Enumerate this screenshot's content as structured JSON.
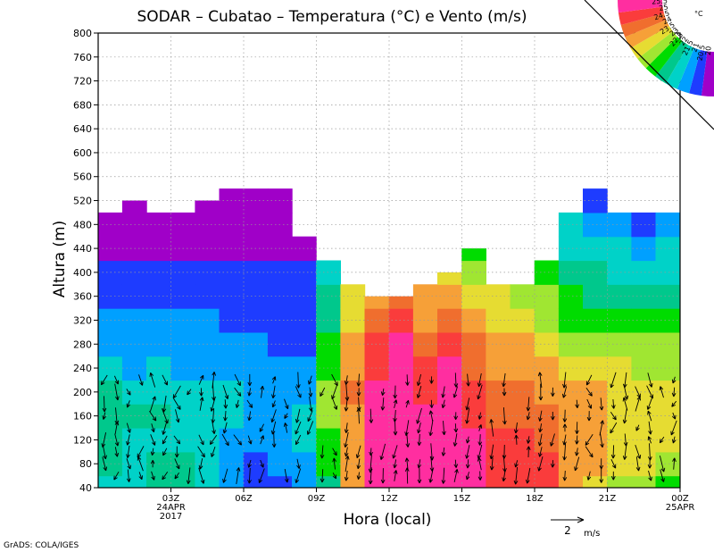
{
  "chart_data": {
    "type": "heatmap",
    "title": "SODAR – Cubatao – Temperatura (°C) e Vento (m/s)",
    "xlabel": "Hora (local)",
    "ylabel": "Altura (m)",
    "x_ticks": [
      {
        "hour": 3,
        "label": "03Z",
        "date": "24APR",
        "year": "2017"
      },
      {
        "hour": 6,
        "label": "06Z"
      },
      {
        "hour": 9,
        "label": "09Z"
      },
      {
        "hour": 12,
        "label": "12Z"
      },
      {
        "hour": 15,
        "label": "15Z"
      },
      {
        "hour": 18,
        "label": "18Z"
      },
      {
        "hour": 21,
        "label": "21Z"
      },
      {
        "hour": 24,
        "label": "00Z",
        "date": "25APR"
      }
    ],
    "xlim": [
      0,
      24
    ],
    "y_ticks": [
      40,
      80,
      120,
      160,
      200,
      240,
      280,
      320,
      360,
      400,
      440,
      480,
      520,
      560,
      600,
      640,
      680,
      720,
      760,
      800
    ],
    "ylim": [
      40,
      800
    ],
    "legend": {
      "unit": "°C",
      "levels": [
        "25.5",
        "25",
        "24.5",
        "24",
        "23.5",
        "23",
        "22.5",
        "22",
        "21.5",
        "21",
        "20.5",
        "20"
      ],
      "colors": [
        "#ff2ea0",
        "#fa3c3c",
        "#f06e2e",
        "#f6a038",
        "#e6dc32",
        "#a0e632",
        "#00dc00",
        "#00c88c",
        "#00d2c8",
        "#00a0ff",
        "#1e3cff",
        "#a000c8"
      ]
    },
    "wind_scale": {
      "value": "2",
      "unit": "m/s"
    },
    "credit": "GrADS: COLA/IGES",
    "time": [
      0,
      1,
      2,
      3,
      4,
      5,
      6,
      7,
      8,
      9,
      10,
      11,
      12,
      13,
      14,
      15,
      16,
      17,
      18,
      19,
      20,
      21,
      22,
      23
    ],
    "top_height": [
      500,
      520,
      500,
      500,
      520,
      540,
      540,
      540,
      460,
      420,
      380,
      360,
      360,
      380,
      400,
      440,
      380,
      380,
      420,
      500,
      540,
      500,
      500,
      500
    ],
    "heights": [
      40,
      80,
      120,
      160,
      200,
      240,
      280,
      320,
      360,
      400,
      440,
      480,
      520
    ],
    "temperature": [
      [
        21.7,
        21.8,
        22.0,
        22.1,
        21.8,
        21.0,
        20.5,
        20.5,
        21.1,
        22.3,
        24.0,
        25.6,
        25.6,
        25.6,
        25.6,
        25.6,
        25.4,
        25.2,
        25.0,
        24.1,
        23.6,
        23.3,
        23.0,
        22.9
      ],
      [
        22.0,
        21.9,
        22.1,
        22.0,
        21.8,
        21.1,
        20.9,
        21.0,
        21.3,
        22.6,
        24.2,
        25.6,
        25.6,
        25.6,
        25.6,
        25.6,
        25.4,
        25.2,
        25.0,
        24.3,
        24.0,
        23.8,
        23.6,
        23.4
      ],
      [
        22.1,
        21.9,
        21.9,
        21.8,
        21.6,
        21.3,
        21.2,
        21.2,
        21.5,
        22.8,
        24.3,
        25.6,
        25.7,
        25.6,
        25.6,
        25.6,
        25.1,
        25.0,
        24.8,
        24.4,
        24.1,
        23.9,
        23.7,
        23.5
      ],
      [
        22.2,
        22.1,
        22.0,
        21.8,
        21.8,
        21.5,
        21.3,
        21.3,
        21.5,
        23.0,
        24.4,
        25.6,
        25.8,
        25.5,
        25.7,
        25.2,
        24.9,
        24.8,
        24.5,
        24.4,
        24.1,
        23.9,
        23.7,
        23.5
      ],
      [
        22.0,
        21.8,
        21.9,
        21.8,
        21.7,
        21.5,
        21.3,
        21.2,
        21.3,
        23.0,
        24.5,
        25.6,
        25.9,
        25.4,
        25.8,
        25.1,
        24.6,
        24.5,
        24.3,
        24.3,
        24.0,
        23.8,
        23.6,
        23.5
      ],
      [
        21.5,
        21.4,
        21.5,
        21.4,
        21.4,
        21.3,
        21.1,
        21.0,
        21.0,
        22.8,
        24.3,
        25.4,
        25.9,
        25.2,
        25.6,
        24.8,
        24.4,
        24.3,
        24.0,
        23.9,
        23.7,
        23.5,
        23.4,
        23.4
      ],
      [
        21.2,
        21.2,
        21.3,
        21.2,
        21.2,
        21.1,
        21.0,
        20.9,
        20.9,
        22.6,
        24.1,
        25.1,
        25.6,
        24.8,
        25.2,
        24.5,
        24.2,
        24.0,
        23.7,
        23.4,
        23.2,
        23.1,
        23.0,
        23.0
      ],
      [
        21.0,
        21.0,
        21.1,
        21.0,
        21.0,
        20.9,
        20.8,
        20.8,
        20.7,
        22.4,
        23.9,
        24.7,
        25.2,
        24.4,
        24.7,
        24.2,
        23.9,
        23.7,
        23.3,
        22.9,
        22.7,
        22.6,
        22.5,
        22.6
      ],
      [
        20.9,
        20.9,
        20.9,
        20.9,
        20.9,
        20.8,
        20.7,
        20.7,
        20.6,
        22.2,
        23.7,
        24.4,
        24.7,
        24.0,
        24.3,
        23.9,
        23.7,
        23.4,
        23.0,
        22.6,
        22.4,
        22.3,
        22.2,
        22.2
      ],
      [
        20.7,
        20.6,
        20.6,
        20.6,
        20.6,
        20.6,
        20.5,
        20.5,
        20.5,
        21.8,
        23.2,
        23.8,
        23.9,
        23.2,
        23.6,
        23.3,
        23.1,
        23.0,
        22.6,
        22.2,
        22.0,
        21.9,
        21.8,
        21.9
      ],
      [
        20.4,
        20.3,
        20.3,
        20.3,
        20.3,
        20.3,
        20.3,
        20.3,
        20.3,
        20.8,
        22.2,
        22.9,
        23.0,
        22.5,
        22.8,
        22.6,
        22.5,
        22.5,
        22.2,
        21.8,
        21.6,
        21.5,
        21.4,
        21.5
      ],
      [
        20.0,
        20.0,
        19.9,
        19.9,
        19.9,
        19.9,
        19.9,
        19.9,
        20.0,
        20.3,
        21.2,
        21.8,
        22.0,
        21.6,
        21.8,
        22.0,
        22.0,
        22.0,
        21.9,
        21.5,
        21.2,
        21.0,
        20.9,
        21.0
      ],
      [
        19.7,
        19.7,
        19.6,
        19.6,
        19.6,
        19.6,
        19.6,
        19.6,
        19.7,
        19.9,
        20.6,
        21.0,
        21.2,
        21.0,
        21.2,
        21.4,
        21.5,
        21.5,
        21.5,
        21.2,
        20.9,
        20.7,
        20.6,
        20.7
      ]
    ]
  }
}
